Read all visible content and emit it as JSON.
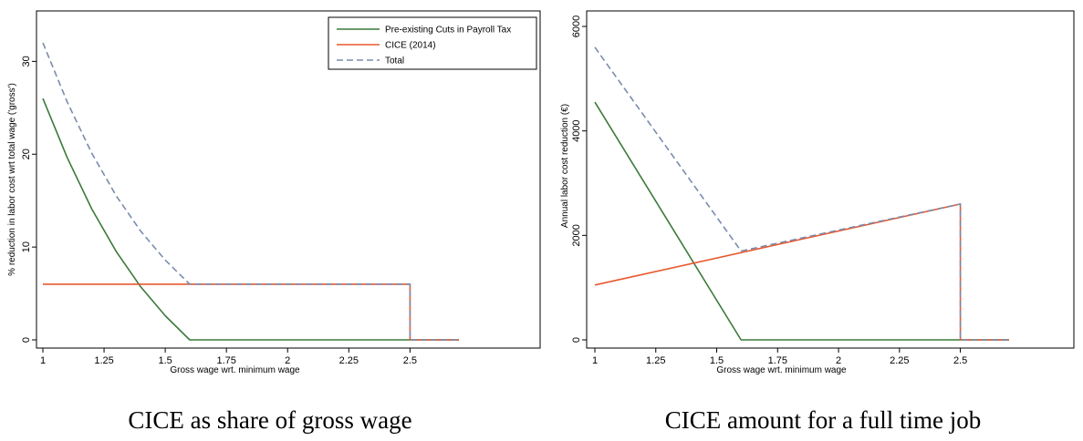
{
  "chart_data": [
    {
      "type": "line",
      "caption": "CICE as share of gross wage",
      "xlabel": "Gross wage wrt. minimum wage",
      "ylabel": "% reduction in labor cost wrt total wage ('gross')",
      "xlim": [
        1,
        2.7
      ],
      "ylim": [
        0,
        32
      ],
      "xticks": [
        1,
        1.25,
        1.5,
        1.75,
        2,
        2.25,
        2.5
      ],
      "xtick_labels": [
        "1",
        "1.25",
        "1.5",
        "1.75",
        "2",
        "2.25",
        "2.5"
      ],
      "yticks": [
        0,
        10,
        20,
        30
      ],
      "ytick_labels": [
        "0",
        "10",
        "20",
        "30"
      ],
      "legend_position": "top-right",
      "series": [
        {
          "name": "Pre-existing Cuts in Payroll Tax",
          "color": "#3a7a3a",
          "style": "solid",
          "points": [
            [
              1,
              26
            ],
            [
              1.1,
              19.6
            ],
            [
              1.2,
              14.1
            ],
            [
              1.3,
              9.5
            ],
            [
              1.4,
              5.7
            ],
            [
              1.5,
              2.6
            ],
            [
              1.6,
              0
            ],
            [
              2.5,
              0
            ],
            [
              2.7,
              0
            ]
          ]
        },
        {
          "name": "CICE (2014)",
          "color": "#e8582e",
          "style": "solid",
          "points": [
            [
              1,
              6
            ],
            [
              2.5,
              6
            ],
            [
              2.5,
              0
            ],
            [
              2.7,
              0
            ]
          ]
        },
        {
          "name": "Total",
          "color": "#7a8cab",
          "style": "dashed",
          "points": [
            [
              1,
              32
            ],
            [
              1.1,
              25.6
            ],
            [
              1.2,
              20.1
            ],
            [
              1.3,
              15.5
            ],
            [
              1.4,
              11.7
            ],
            [
              1.5,
              8.6
            ],
            [
              1.6,
              6
            ],
            [
              2.5,
              6
            ],
            [
              2.5,
              0
            ],
            [
              2.7,
              0
            ]
          ]
        }
      ]
    },
    {
      "type": "line",
      "caption": "CICE amount for a full time job",
      "xlabel": "Gross wage wrt. minimum wage",
      "ylabel": "Annual labor cost reduction (€)",
      "xlim": [
        1,
        2.7
      ],
      "ylim": [
        0,
        6000
      ],
      "xticks": [
        1,
        1.25,
        1.5,
        1.75,
        2,
        2.25,
        2.5
      ],
      "xtick_labels": [
        "1",
        "1.25",
        "1.5",
        "1.75",
        "2",
        "2.25",
        "2.5"
      ],
      "yticks": [
        0,
        2000,
        4000,
        6000
      ],
      "ytick_labels": [
        "0",
        "2000",
        "4000",
        "6000"
      ],
      "series": [
        {
          "name": "Pre-existing Cuts in Payroll Tax",
          "color": "#3a7a3a",
          "style": "solid",
          "points": [
            [
              1,
              4550
            ],
            [
              1.6,
              0
            ],
            [
              2.5,
              0
            ],
            [
              2.7,
              0
            ]
          ]
        },
        {
          "name": "CICE (2014)",
          "color": "#e8582e",
          "style": "solid",
          "points": [
            [
              1,
              1050
            ],
            [
              2.5,
              2600
            ],
            [
              2.5,
              0
            ],
            [
              2.7,
              0
            ]
          ]
        },
        {
          "name": "Total",
          "color": "#7a8cab",
          "style": "dashed",
          "points": [
            [
              1,
              5600
            ],
            [
              1.6,
              1700
            ],
            [
              2.5,
              2600
            ],
            [
              2.5,
              0
            ],
            [
              2.7,
              0
            ]
          ]
        }
      ]
    }
  ],
  "legend": {
    "items": [
      {
        "label": "Pre-existing Cuts in Payroll Tax",
        "color": "#3a7a3a",
        "style": "solid"
      },
      {
        "label": "CICE (2014)",
        "color": "#e8582e",
        "style": "solid"
      },
      {
        "label": "Total",
        "color": "#7a8cab",
        "style": "dashed"
      }
    ]
  }
}
